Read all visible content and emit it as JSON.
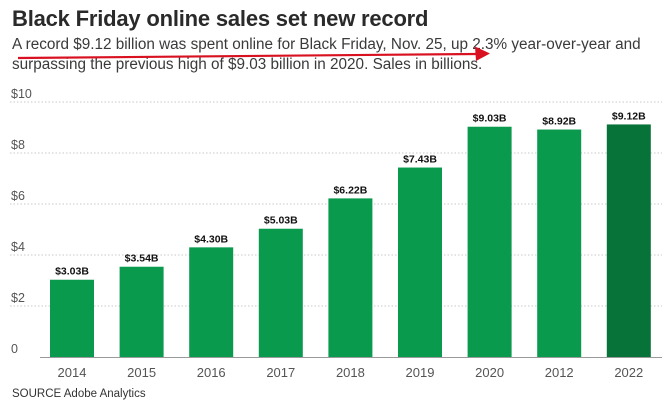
{
  "title": "Black Friday online sales set new record",
  "subtitle": "A record $9.12 billion was spent online for Black Friday, Nov. 25, up 2.3% year-over-year and surpassing the previous high of $9.03 billion in 2020. Sales in billions.",
  "source": "SOURCE Adobe Analytics",
  "colors": {
    "bar": "#0a9a4e",
    "highlight_bar": "#077338",
    "annotation_arrow": "#d8101f"
  },
  "chart_data": {
    "type": "bar",
    "categories": [
      "2014",
      "2015",
      "2016",
      "2017",
      "2018",
      "2019",
      "2020",
      "2012",
      "2022"
    ],
    "values": [
      3.03,
      3.54,
      4.3,
      5.03,
      6.22,
      7.43,
      9.03,
      8.92,
      9.12
    ],
    "data_labels": [
      "$3.03B",
      "$3.54B",
      "$4.30B",
      "$5.03B",
      "$6.22B",
      "$7.43B",
      "$9.03B",
      "$8.92B",
      "$9.12B"
    ],
    "highlight_index": 8,
    "ylim": [
      0,
      10
    ],
    "y_ticks": [
      0,
      2,
      4,
      6,
      8,
      10
    ],
    "y_tick_labels": [
      "0",
      "$2",
      "$4",
      "$6",
      "$8",
      "$10"
    ],
    "grid": true,
    "xlabel": "",
    "ylabel": ""
  }
}
